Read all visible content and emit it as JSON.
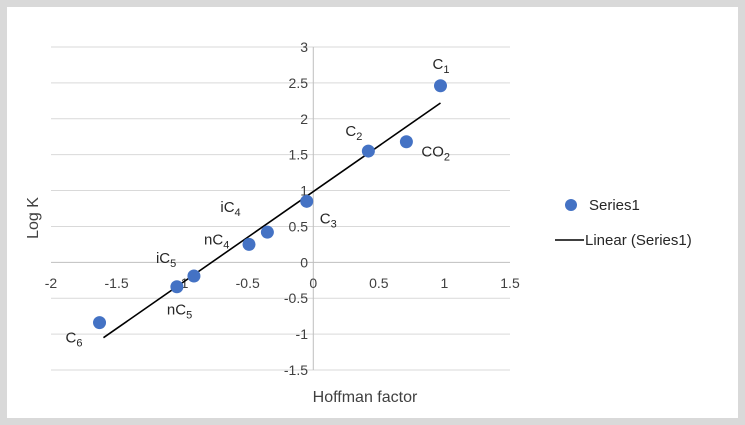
{
  "chart_data": {
    "type": "scatter",
    "title": "",
    "xlabel": "Hoffman factor",
    "ylabel": "Log K",
    "xlim": [
      -2,
      1.5
    ],
    "ylim": [
      -1.5,
      3
    ],
    "x_ticks": [
      "-2",
      "-1.5",
      "-1",
      "-0.5",
      "0",
      "0.5",
      "1",
      "1.5"
    ],
    "y_ticks": [
      "-1.5",
      "-1",
      "-0.5",
      "0",
      "0.5",
      "1",
      "1.5",
      "2",
      "2.5",
      "3"
    ],
    "grid": "horizontal",
    "legend_position": "right",
    "marker_color": "#4472c4",
    "line_color": "#000000",
    "series": [
      {
        "name": "Series1",
        "x": [
          -1.63,
          -1.04,
          -0.91,
          -0.49,
          -0.35,
          -0.05,
          0.42,
          0.71,
          0.97
        ],
        "y": [
          -0.84,
          -0.34,
          -0.19,
          0.25,
          0.42,
          0.85,
          1.55,
          1.68,
          2.46
        ],
        "labels": [
          {
            "main": "C",
            "sub": "6"
          },
          {
            "main": "nC",
            "sub": "5"
          },
          {
            "main": "iC",
            "sub": "5"
          },
          {
            "main": "nC",
            "sub": "4"
          },
          {
            "main": "iC",
            "sub": "4"
          },
          {
            "main": "C",
            "sub": "3"
          },
          {
            "main": "C",
            "sub": "2"
          },
          {
            "main": "CO",
            "sub": "2"
          },
          {
            "main": "C",
            "sub": "1"
          }
        ]
      }
    ],
    "trendline": {
      "name": "Linear (Series1)",
      "x": [
        -1.6,
        0.97
      ],
      "y": [
        -1.05,
        2.22
      ]
    }
  }
}
